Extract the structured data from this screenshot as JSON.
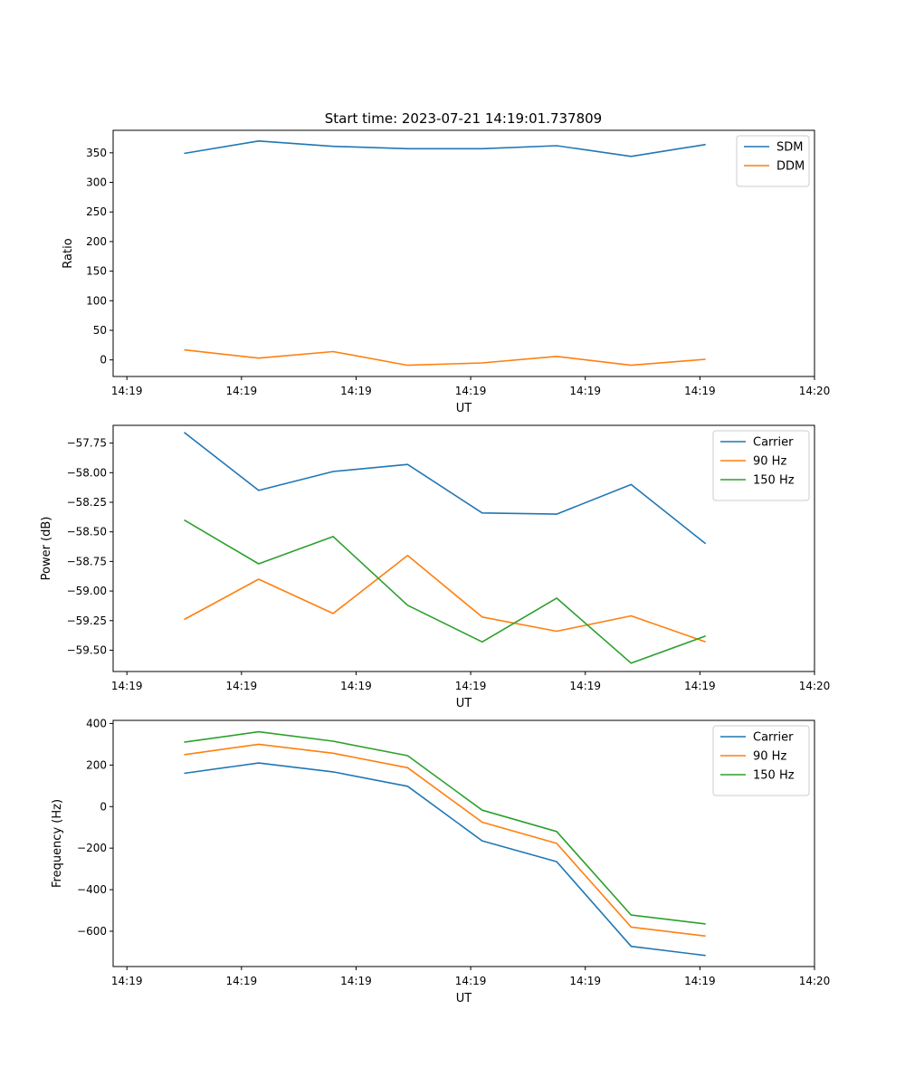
{
  "figure_title": "Start time: 2023-07-21 14:19:01.737809",
  "colors": {
    "blue": "#1f77b4",
    "orange": "#ff7f0e",
    "green": "#2ca02c"
  },
  "chart_data": [
    {
      "type": "line",
      "name": "ratio",
      "xlabel": "UT",
      "ylabel": "Ratio",
      "x_ticks": [
        "14:19",
        "14:19",
        "14:19",
        "14:19",
        "14:19",
        "14:19",
        "14:20"
      ],
      "xlim": [
        -0.12,
        6.0
      ],
      "ylim": [
        -28,
        388
      ],
      "y_ticks": [
        0,
        50,
        100,
        150,
        200,
        250,
        300,
        350
      ],
      "y_tick_labels": [
        "0",
        "50",
        "100",
        "150",
        "200",
        "250",
        "300",
        "350"
      ],
      "x": [
        0.5,
        1.15,
        1.8,
        2.45,
        3.1,
        3.75,
        4.4,
        5.05
      ],
      "series": [
        {
          "name": "SDM",
          "color": "blue",
          "values": [
            349,
            370,
            361,
            357,
            357,
            362,
            344,
            364
          ]
        },
        {
          "name": "DDM",
          "color": "orange",
          "values": [
            17,
            3,
            14,
            -9,
            -5,
            6,
            -9,
            1
          ]
        }
      ]
    },
    {
      "type": "line",
      "name": "power",
      "xlabel": "UT",
      "ylabel": "Power (dB)",
      "x_ticks": [
        "14:19",
        "14:19",
        "14:19",
        "14:19",
        "14:19",
        "14:19",
        "14:20"
      ],
      "xlim": [
        -0.12,
        6.0
      ],
      "ylim": [
        -59.68,
        -57.6
      ],
      "y_ticks": [
        -59.5,
        -59.25,
        -59.0,
        -58.75,
        -58.5,
        -58.25,
        -58.0,
        -57.75
      ],
      "y_tick_labels": [
        "−59.50",
        "−59.25",
        "−59.00",
        "−58.75",
        "−58.50",
        "−58.25",
        "−58.00",
        "−57.75"
      ],
      "x": [
        0.5,
        1.15,
        1.8,
        2.45,
        3.1,
        3.75,
        4.4,
        5.05
      ],
      "series": [
        {
          "name": "Carrier",
          "color": "blue",
          "values": [
            -57.66,
            -58.15,
            -57.99,
            -57.93,
            -58.34,
            -58.35,
            -58.1,
            -58.6
          ]
        },
        {
          "name": "90 Hz",
          "color": "orange",
          "values": [
            -59.24,
            -58.9,
            -59.19,
            -58.7,
            -59.22,
            -59.34,
            -59.21,
            -59.43
          ]
        },
        {
          "name": "150 Hz",
          "color": "green",
          "values": [
            -58.4,
            -58.77,
            -58.54,
            -59.12,
            -59.43,
            -59.06,
            -59.61,
            -59.38
          ]
        }
      ]
    },
    {
      "type": "line",
      "name": "frequency",
      "xlabel": "UT",
      "ylabel": "Frequency (Hz)",
      "x_ticks": [
        "14:19",
        "14:19",
        "14:19",
        "14:19",
        "14:19",
        "14:19",
        "14:20"
      ],
      "xlim": [
        -0.12,
        6.0
      ],
      "ylim": [
        -770,
        415
      ],
      "y_ticks": [
        -600,
        -400,
        -200,
        0,
        200,
        400
      ],
      "y_tick_labels": [
        "−600",
        "−400",
        "−200",
        "0",
        "200",
        "400"
      ],
      "x": [
        0.5,
        1.15,
        1.8,
        2.45,
        3.1,
        3.75,
        4.4,
        5.05
      ],
      "series": [
        {
          "name": "Carrier",
          "color": "blue",
          "values": [
            160,
            210,
            167,
            98,
            -165,
            -265,
            -673,
            -717
          ]
        },
        {
          "name": "90 Hz",
          "color": "orange",
          "values": [
            250,
            300,
            257,
            187,
            -75,
            -177,
            -580,
            -623
          ]
        },
        {
          "name": "150 Hz",
          "color": "green",
          "values": [
            310,
            360,
            315,
            245,
            -17,
            -120,
            -522,
            -565
          ]
        }
      ]
    }
  ]
}
